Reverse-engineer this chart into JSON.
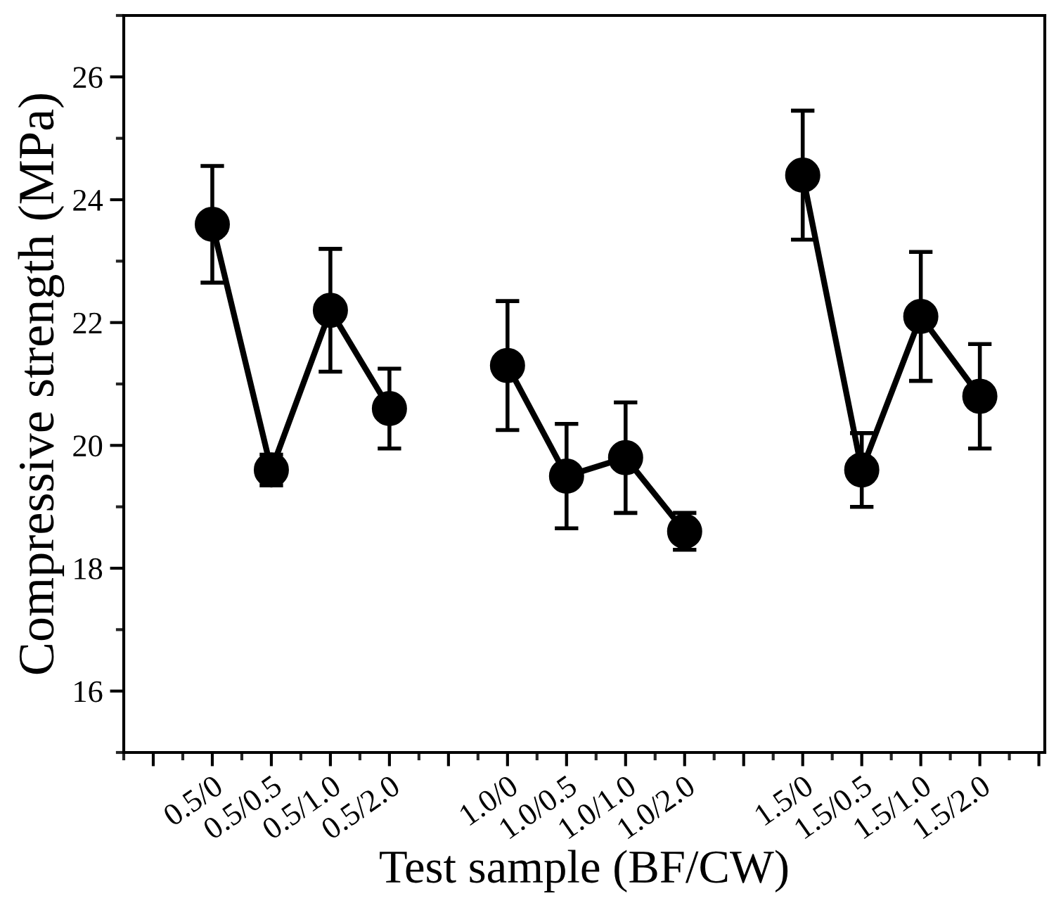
{
  "chart_data": {
    "type": "line",
    "xlabel": "Test sample (BF/CW)",
    "ylabel": "Compressive strength (MPa)",
    "categories": [
      null,
      "0.5/0",
      "0.5/0.5",
      "0.5/1.0",
      "0.5/2.0",
      null,
      "1.0/0",
      "1.0/0.5",
      "1.0/1.0",
      "1.0/2.0",
      null,
      "1.5/0",
      "1.5/0.5",
      "1.5/1.0",
      "1.5/2.0",
      null
    ],
    "series": [
      {
        "color": "#000000",
        "values": [
          null,
          23.6,
          19.6,
          22.2,
          20.6,
          null,
          21.3,
          19.5,
          19.8,
          18.6,
          null,
          24.4,
          19.6,
          22.1,
          20.8,
          null
        ],
        "errors": [
          null,
          0.95,
          0.25,
          1.0,
          0.65,
          null,
          1.05,
          0.85,
          0.9,
          0.3,
          null,
          1.05,
          0.6,
          1.05,
          0.85,
          null
        ]
      }
    ],
    "ylim": [
      15,
      27
    ],
    "yticks": [
      16,
      18,
      20,
      22,
      24,
      26
    ],
    "marker": "circle",
    "line_style": "solid"
  }
}
